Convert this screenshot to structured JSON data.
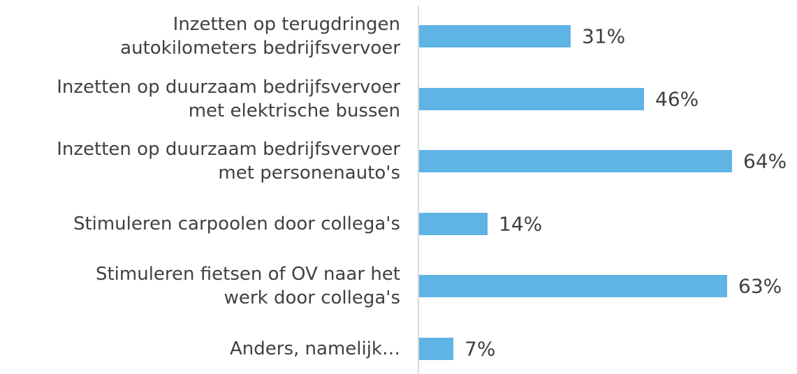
{
  "chart_data": {
    "type": "bar",
    "orientation": "horizontal",
    "categories": [
      "Inzetten op terugdringen\nautokilometers bedrijfsvervoer",
      "Inzetten op duurzaam bedrijfsvervoer\nmet elektrische bussen",
      "Inzetten op duurzaam bedrijfsvervoer\nmet personenauto's",
      "Stimuleren carpoolen door collega's",
      "Stimuleren fietsen of OV naar het\nwerk door collega's",
      "Anders, namelijk…"
    ],
    "values": [
      31,
      46,
      64,
      14,
      63,
      7
    ],
    "value_labels": [
      "31%",
      "46%",
      "64%",
      "14%",
      "63%",
      "7%"
    ],
    "color": "#5eb4e5"
  }
}
